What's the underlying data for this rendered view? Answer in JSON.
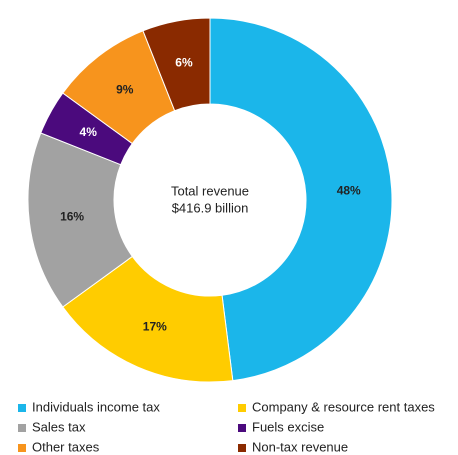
{
  "chart_data": {
    "type": "donut",
    "center_label": [
      "Total revenue",
      "$416.9 billion"
    ],
    "categories": [
      "Individuals income tax",
      "Company & resource rent taxes",
      "Sales tax",
      "Fuels excise",
      "Other taxes",
      "Non-tax revenue"
    ],
    "values": [
      48,
      17,
      16,
      4,
      9,
      6
    ],
    "value_labels": [
      "48%",
      "17%",
      "16%",
      "4%",
      "9%",
      "6%"
    ],
    "colors": [
      "#1bb6ea",
      "#ffcc00",
      "#a2a2a2",
      "#4b0a7d",
      "#f7941d",
      "#8a2a00"
    ],
    "legend": "bottom"
  }
}
